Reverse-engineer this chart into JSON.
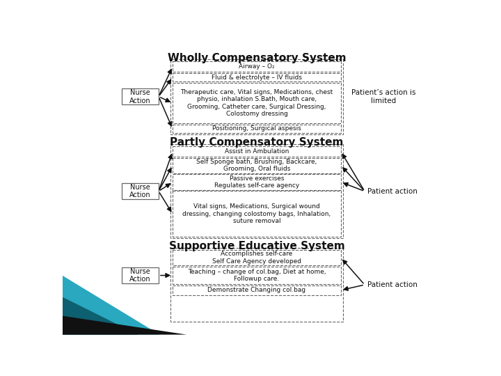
{
  "title1": "Wholly Compensatory System",
  "title2": "Partly Compensatory System",
  "title3": "Supportive Educative System",
  "section1_boxes": [
    "Airway – O₂",
    "Fluid & electrolyte – IV fluids",
    "Therapeutic care, Vital signs, Medications, chest\nphysio, inhalation S.Bath, Mouth care,\nGrooming, Catheter care, Surgical Dressing,\nColostomy dressing",
    "Positioning, Surgical aspesis"
  ],
  "section2_boxes": [
    "Assist in Ambulation",
    "Self Sponge bath, Brushing, Backcare,\nGrooming, Oral fluids",
    "Passive exercises\nRegulates self-care agency",
    "Vital signs, Medications, Surgical wound\ndressing, changing colostomy bags, Inhalation,\nsuture removal"
  ],
  "section3_boxes": [
    "Accomplishes self-care\nSelf Care Agency developed",
    "Teaching – change of col.bag, Diet at home,\nFollowup care.",
    "Demonstrate Changing col.bag"
  ],
  "nurse_label": "Nurse\nAction",
  "patient_label1": "Patient’s action is\nlimited",
  "patient_label2": "Patient action",
  "patient_label3": "Patient action",
  "bg_color": "#ffffff",
  "box_edgecolor": "#666666",
  "text_color": "#111111",
  "arrow_color": "#111111",
  "title_color": "#111111"
}
